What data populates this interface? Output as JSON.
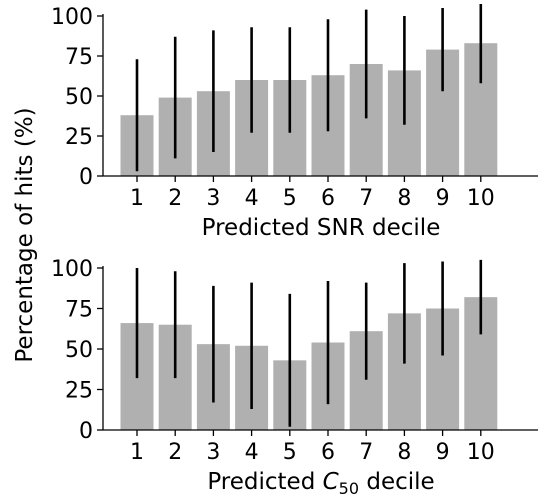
{
  "ylabel": "Percentage of hits (%)",
  "chart_data": [
    {
      "type": "bar",
      "categories": [
        "1",
        "2",
        "3",
        "4",
        "5",
        "6",
        "7",
        "8",
        "9",
        "10"
      ],
      "values": [
        38,
        49,
        53,
        60,
        60,
        63,
        70,
        66,
        79,
        83
      ],
      "errors": [
        35,
        38,
        38,
        33,
        33,
        35,
        34,
        34,
        26,
        25
      ],
      "xlabel": "Predicted SNR decile",
      "xlabel_main": "Predicted SNR decile",
      "ylim": [
        0,
        100
      ],
      "yticks": [
        "0",
        "25",
        "50",
        "75",
        "100"
      ],
      "bar_color": "#b0b0b0",
      "error_color": "#000000"
    },
    {
      "type": "bar",
      "categories": [
        "1",
        "2",
        "3",
        "4",
        "5",
        "6",
        "7",
        "8",
        "9",
        "10"
      ],
      "values": [
        66,
        65,
        53,
        52,
        43,
        54,
        61,
        72,
        75,
        82
      ],
      "errors": [
        34,
        33,
        36,
        39,
        41,
        38,
        30,
        31,
        29,
        23
      ],
      "xlabel": "Predicted C50 decile",
      "xlabel_main": "Predicted ",
      "xlabel_italic": "C",
      "xlabel_sub": "50",
      "xlabel_tail": " decile",
      "ylim": [
        0,
        100
      ],
      "yticks": [
        "0",
        "25",
        "50",
        "75",
        "100"
      ],
      "bar_color": "#b0b0b0",
      "error_color": "#000000"
    }
  ]
}
